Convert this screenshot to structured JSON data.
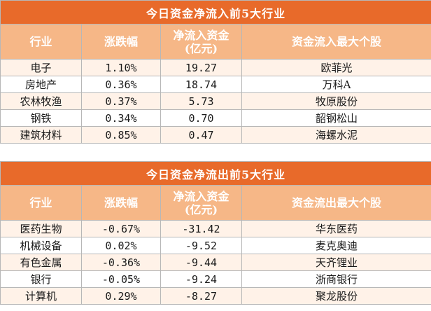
{
  "inflow": {
    "title": "今日资金净流入前5大行业",
    "headers": {
      "industry": "行业",
      "change": "涨跌幅",
      "netflow_l1": "净流入资金",
      "netflow_l2": "(亿元)",
      "top_stock": "资金流入最大个股"
    },
    "rows": [
      {
        "industry": "电子",
        "change": "1.10%",
        "netflow": "19.27",
        "stock": "欧菲光"
      },
      {
        "industry": "房地产",
        "change": "0.36%",
        "netflow": "18.74",
        "stock": "万科A"
      },
      {
        "industry": "农林牧渔",
        "change": "0.37%",
        "netflow": "5.73",
        "stock": "牧原股份"
      },
      {
        "industry": "钢铁",
        "change": "0.34%",
        "netflow": "0.70",
        "stock": "韶钢松山"
      },
      {
        "industry": "建筑材料",
        "change": "0.85%",
        "netflow": "0.47",
        "stock": "海螺水泥"
      }
    ]
  },
  "outflow": {
    "title": "今日资金净流出前5大行业",
    "headers": {
      "industry": "行业",
      "change": "涨跌幅",
      "netflow_l1": "净流入资金",
      "netflow_l2": "(亿元)",
      "top_stock": "资金流出最大个股"
    },
    "rows": [
      {
        "industry": "医药生物",
        "change": "-0.67%",
        "netflow": "-31.42",
        "stock": "华东医药"
      },
      {
        "industry": "机械设备",
        "change": "0.02%",
        "netflow": "-9.52",
        "stock": "麦克奥迪"
      },
      {
        "industry": "有色金属",
        "change": "-0.36%",
        "netflow": "-9.44",
        "stock": "天齐锂业"
      },
      {
        "industry": "银行",
        "change": "-0.05%",
        "netflow": "-9.24",
        "stock": "浙商银行"
      },
      {
        "industry": "计算机",
        "change": "0.29%",
        "netflow": "-8.27",
        "stock": "聚龙股份"
      }
    ]
  },
  "colors": {
    "title_bg": "#e86a2a",
    "header_bg": "#f6b787",
    "row_alt_bg": "#fff2e8"
  }
}
